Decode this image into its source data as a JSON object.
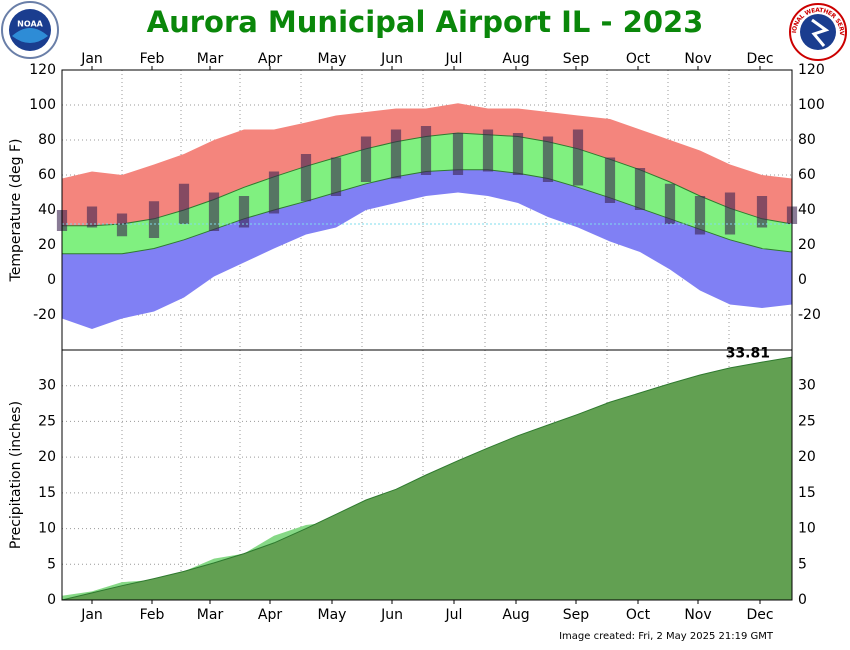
{
  "title": "Aurora Municipal Airport IL - 2023",
  "footer": "Image created: Fri, 2 May 2025 21:19 GMT",
  "logos": {
    "left": "NOAA",
    "right": "NATIONAL WEATHER SERVICE"
  },
  "chart_data": [
    {
      "type": "band",
      "y_label": "Temperature (deg F)",
      "x": [
        1,
        16,
        31,
        47,
        62,
        77,
        92,
        107,
        123,
        138,
        153,
        168,
        183,
        199,
        214,
        229,
        244,
        259,
        275,
        290,
        305,
        320,
        335,
        351,
        366
      ],
      "xlim": [
        1,
        366
      ],
      "xticks": [
        {
          "value": 16,
          "label": "Jan"
        },
        {
          "value": 46,
          "label": "Feb"
        },
        {
          "value": 75,
          "label": "Mar"
        },
        {
          "value": 105,
          "label": "Apr"
        },
        {
          "value": 136,
          "label": "May"
        },
        {
          "value": 166,
          "label": "Jun"
        },
        {
          "value": 197,
          "label": "Jul"
        },
        {
          "value": 228,
          "label": "Aug"
        },
        {
          "value": 258,
          "label": "Sep"
        },
        {
          "value": 289,
          "label": "Oct"
        },
        {
          "value": 319,
          "label": "Nov"
        },
        {
          "value": 350,
          "label": "Dec"
        }
      ],
      "ylim": [
        -40,
        120
      ],
      "yticks": [
        -20,
        0,
        20,
        40,
        60,
        80,
        100,
        120
      ],
      "record_high": [
        58,
        62,
        60,
        66,
        72,
        80,
        86,
        86,
        90,
        94,
        96,
        98,
        98,
        101,
        98,
        98,
        96,
        94,
        92,
        86,
        80,
        74,
        66,
        60,
        58
      ],
      "normal_high": [
        31,
        31,
        32,
        35,
        40,
        46,
        53,
        59,
        65,
        70,
        75,
        79,
        82,
        84,
        83,
        82,
        79,
        75,
        69,
        63,
        56,
        48,
        41,
        35,
        32
      ],
      "normal_low": [
        15,
        15,
        15,
        18,
        23,
        29,
        35,
        40,
        45,
        50,
        55,
        59,
        62,
        63,
        63,
        61,
        58,
        53,
        47,
        41,
        35,
        29,
        23,
        18,
        16
      ],
      "record_low": [
        -22,
        -28,
        -22,
        -18,
        -10,
        2,
        10,
        18,
        26,
        30,
        40,
        44,
        48,
        50,
        48,
        44,
        36,
        30,
        22,
        16,
        6,
        -6,
        -14,
        -16,
        -14
      ],
      "observed_high": [
        40,
        42,
        38,
        45,
        55,
        50,
        48,
        62,
        72,
        70,
        82,
        86,
        88,
        84,
        86,
        84,
        82,
        86,
        70,
        64,
        55,
        48,
        50,
        48,
        42
      ],
      "observed_low": [
        28,
        30,
        25,
        24,
        32,
        28,
        30,
        38,
        45,
        48,
        56,
        58,
        60,
        60,
        62,
        60,
        56,
        54,
        44,
        40,
        32,
        26,
        26,
        30,
        32
      ],
      "freezing_line": 32,
      "colors": {
        "record_high": "#f4857d",
        "normal": "#80f080",
        "record_low": "#8080f4",
        "observed": "#3a2350",
        "normal_line": "#2f7a2f",
        "freezing": "#7fdcec"
      }
    },
    {
      "type": "cumulative",
      "y_label": "Precipitation (inches)",
      "x": [
        1,
        16,
        31,
        47,
        62,
        77,
        92,
        107,
        123,
        138,
        153,
        168,
        183,
        199,
        214,
        229,
        244,
        259,
        275,
        290,
        305,
        320,
        335,
        351,
        366
      ],
      "xlim": [
        1,
        366
      ],
      "xticks": [
        {
          "value": 16,
          "label": "Jan"
        },
        {
          "value": 46,
          "label": "Feb"
        },
        {
          "value": 75,
          "label": "Mar"
        },
        {
          "value": 105,
          "label": "Apr"
        },
        {
          "value": 136,
          "label": "May"
        },
        {
          "value": 166,
          "label": "Jun"
        },
        {
          "value": 197,
          "label": "Jul"
        },
        {
          "value": 228,
          "label": "Aug"
        },
        {
          "value": 258,
          "label": "Sep"
        },
        {
          "value": 289,
          "label": "Oct"
        },
        {
          "value": 319,
          "label": "Nov"
        },
        {
          "value": 350,
          "label": "Dec"
        }
      ],
      "ylim": [
        0,
        35
      ],
      "yticks": [
        0,
        5,
        10,
        15,
        20,
        25,
        30
      ],
      "observed": [
        0.6,
        1.2,
        2.5,
        2.8,
        4,
        5.8,
        6.5,
        9,
        10.5,
        11,
        12,
        12.5,
        13,
        16,
        19.5,
        21,
        23,
        24.5,
        26,
        28,
        29,
        30.5,
        31.5,
        32.5,
        33.81
      ],
      "normal": [
        0,
        1,
        2,
        3,
        4,
        5.2,
        6.5,
        8,
        10,
        12,
        14,
        15.5,
        17.5,
        19.5,
        21.3,
        23,
        24.5,
        26,
        27.7,
        29,
        30.3,
        31.5,
        32.5,
        33.3,
        34
      ],
      "colors": {
        "observed": "#86d886",
        "normal": "#62a052",
        "normal_line": "#2f7a2f"
      }
    }
  ]
}
